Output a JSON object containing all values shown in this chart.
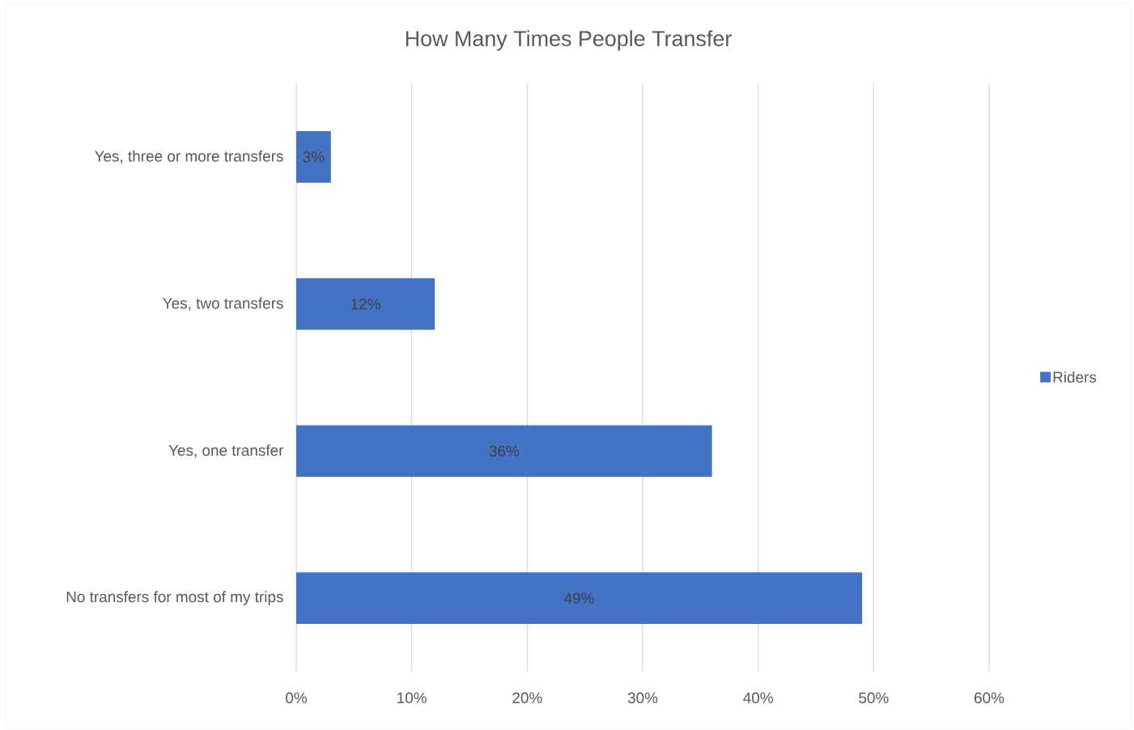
{
  "chart_data": {
    "type": "bar",
    "orientation": "horizontal",
    "title": "How Many Times People Transfer",
    "categories": [
      "Yes, three or more transfers",
      "Yes, two transfers",
      "Yes, one transfer",
      "No transfers for most of my trips"
    ],
    "series": [
      {
        "name": "Riders",
        "color": "#4472c4",
        "values": [
          3,
          12,
          36,
          49
        ],
        "value_labels": [
          "3%",
          "12%",
          "36%",
          "49%"
        ]
      }
    ],
    "xlim": [
      0,
      60
    ],
    "xticks": [
      {
        "value": 0,
        "label": "0%"
      },
      {
        "value": 10,
        "label": "10%"
      },
      {
        "value": 20,
        "label": "20%"
      },
      {
        "value": 30,
        "label": "30%"
      },
      {
        "value": 40,
        "label": "40%"
      },
      {
        "value": 50,
        "label": "50%"
      },
      {
        "value": 60,
        "label": "60%"
      }
    ],
    "grid": "x",
    "legend": "right"
  }
}
